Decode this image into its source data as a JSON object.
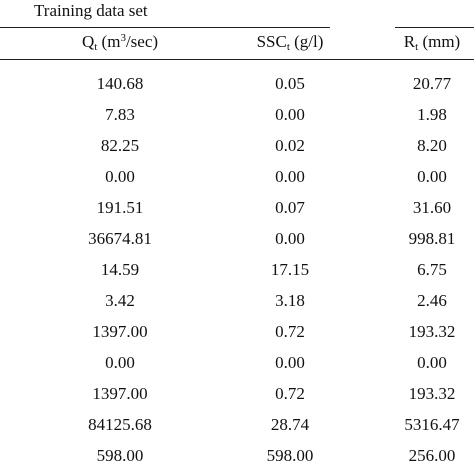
{
  "table": {
    "group_title": "Training data set",
    "columns": [
      [
        {
          "text": "Q"
        },
        {
          "text": "t",
          "shift": "sub"
        },
        {
          "text": " (m"
        },
        {
          "text": "3",
          "shift": "sup"
        },
        {
          "text": "/sec)"
        }
      ],
      [
        {
          "text": "SSC"
        },
        {
          "text": "t",
          "shift": "sub"
        },
        {
          "text": " (g/l)"
        }
      ],
      [
        {
          "text": "R"
        },
        {
          "text": "t",
          "shift": "sub"
        },
        {
          "text": " (mm)"
        }
      ]
    ],
    "rows": [
      [
        "140.68",
        "0.05",
        "20.77"
      ],
      [
        "7.83",
        "0.00",
        "1.98"
      ],
      [
        "82.25",
        "0.02",
        "8.20"
      ],
      [
        "0.00",
        "0.00",
        "0.00"
      ],
      [
        "191.51",
        "0.07",
        "31.60"
      ],
      [
        "36674.81",
        "0.00",
        "998.81"
      ],
      [
        "14.59",
        "17.15",
        "6.75"
      ],
      [
        "3.42",
        "3.18",
        "2.46"
      ],
      [
        "1397.00",
        "0.72",
        "193.32"
      ],
      [
        "0.00",
        "0.00",
        "0.00"
      ],
      [
        "1397.00",
        "0.72",
        "193.32"
      ],
      [
        "84125.68",
        "28.74",
        "5316.47"
      ],
      [
        "598.00",
        "598.00",
        "256.00"
      ]
    ]
  }
}
